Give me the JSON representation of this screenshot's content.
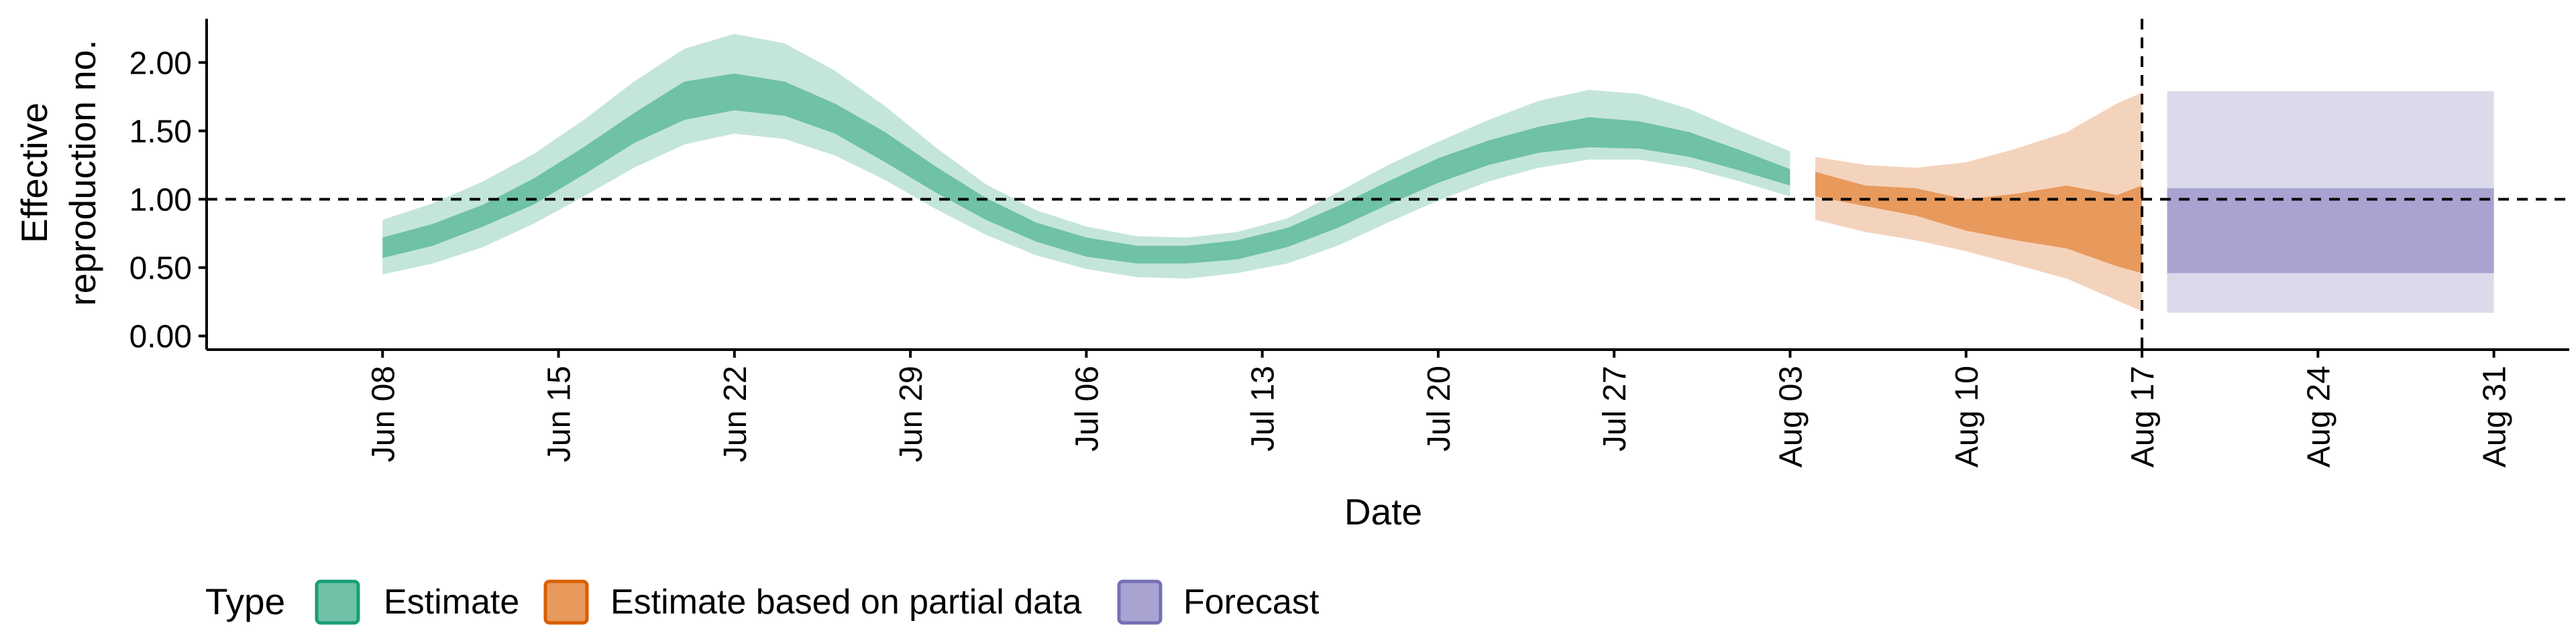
{
  "chart_data": {
    "type": "area",
    "xlabel": "Date",
    "ylabel_lines": [
      "Effective",
      "reproduction no."
    ],
    "x_ticks": [
      "Jun 08",
      "Jun 15",
      "Jun 22",
      "Jun 29",
      "Jul 06",
      "Jul 13",
      "Jul 20",
      "Jul 27",
      "Aug 03",
      "Aug 10",
      "Aug 17",
      "Aug 24",
      "Aug 31"
    ],
    "y_ticks": [
      "0.00",
      "0.50",
      "1.00",
      "1.50",
      "2.00"
    ],
    "xlim": [
      "2020-06-01",
      "2020-09-03"
    ],
    "ylim": [
      -0.1,
      2.32
    ],
    "reference_line_y": 1.0,
    "reference_line_x": "2020-08-17",
    "legend": {
      "title": "Type",
      "position": "bottom-left",
      "items": [
        "Estimate",
        "Estimate based on partial data",
        "Forecast"
      ]
    },
    "colors": {
      "Estimate": {
        "outer": "#c4e5dc",
        "inner": "#6fc1a7",
        "border": "#1b9e77"
      },
      "Estimate based on partial data": {
        "outer": "#f4d3bc",
        "inner": "#e8995c",
        "border": "#d95f02"
      },
      "Forecast": {
        "outer": "#dadaeb",
        "inner": "#a8a3d1",
        "border": "#7570b3"
      }
    },
    "series": [
      {
        "name": "Estimate",
        "x": [
          "2020-06-08",
          "2020-06-10",
          "2020-06-12",
          "2020-06-14",
          "2020-06-16",
          "2020-06-18",
          "2020-06-20",
          "2020-06-22",
          "2020-06-24",
          "2020-06-26",
          "2020-06-28",
          "2020-06-30",
          "2020-07-02",
          "2020-07-04",
          "2020-07-06",
          "2020-07-08",
          "2020-07-10",
          "2020-07-12",
          "2020-07-14",
          "2020-07-16",
          "2020-07-18",
          "2020-07-20",
          "2020-07-22",
          "2020-07-24",
          "2020-07-26",
          "2020-07-28",
          "2020-07-30",
          "2020-08-01",
          "2020-08-03"
        ],
        "lower_90": [
          0.45,
          0.53,
          0.65,
          0.82,
          1.02,
          1.23,
          1.4,
          1.48,
          1.44,
          1.32,
          1.14,
          0.93,
          0.74,
          0.59,
          0.49,
          0.43,
          0.42,
          0.46,
          0.53,
          0.66,
          0.83,
          0.99,
          1.13,
          1.23,
          1.29,
          1.29,
          1.23,
          1.13,
          1.02
        ],
        "upper_90": [
          0.85,
          0.97,
          1.13,
          1.33,
          1.58,
          1.86,
          2.1,
          2.21,
          2.14,
          1.94,
          1.68,
          1.38,
          1.11,
          0.92,
          0.8,
          0.73,
          0.72,
          0.76,
          0.86,
          1.05,
          1.25,
          1.42,
          1.58,
          1.72,
          1.8,
          1.77,
          1.66,
          1.5,
          1.35
        ],
        "lower_50": [
          0.57,
          0.66,
          0.8,
          0.96,
          1.18,
          1.41,
          1.58,
          1.65,
          1.61,
          1.48,
          1.27,
          1.05,
          0.85,
          0.69,
          0.58,
          0.53,
          0.53,
          0.56,
          0.65,
          0.79,
          0.96,
          1.12,
          1.25,
          1.34,
          1.38,
          1.37,
          1.31,
          1.21,
          1.1
        ],
        "upper_50": [
          0.72,
          0.82,
          0.96,
          1.15,
          1.38,
          1.63,
          1.86,
          1.92,
          1.86,
          1.7,
          1.49,
          1.24,
          1.01,
          0.83,
          0.72,
          0.66,
          0.66,
          0.7,
          0.79,
          0.95,
          1.13,
          1.3,
          1.43,
          1.53,
          1.6,
          1.57,
          1.49,
          1.36,
          1.22
        ]
      },
      {
        "name": "Estimate based on partial data",
        "x": [
          "2020-08-04",
          "2020-08-06",
          "2020-08-08",
          "2020-08-10",
          "2020-08-12",
          "2020-08-14",
          "2020-08-16",
          "2020-08-17"
        ],
        "lower_90": [
          0.85,
          0.76,
          0.7,
          0.62,
          0.52,
          0.42,
          0.26,
          0.18
        ],
        "upper_90": [
          1.31,
          1.25,
          1.23,
          1.27,
          1.37,
          1.49,
          1.7,
          1.78
        ],
        "lower_50": [
          1.02,
          0.95,
          0.88,
          0.77,
          0.7,
          0.64,
          0.51,
          0.46
        ],
        "upper_50": [
          1.2,
          1.1,
          1.08,
          1.0,
          1.04,
          1.1,
          1.03,
          1.1
        ]
      },
      {
        "name": "Forecast",
        "x": [
          "2020-08-18",
          "2020-08-31"
        ],
        "lower_90": [
          0.17,
          0.17
        ],
        "upper_90": [
          1.79,
          1.79
        ],
        "lower_50": [
          0.46,
          0.46
        ],
        "upper_50": [
          1.08,
          1.08
        ]
      }
    ]
  }
}
